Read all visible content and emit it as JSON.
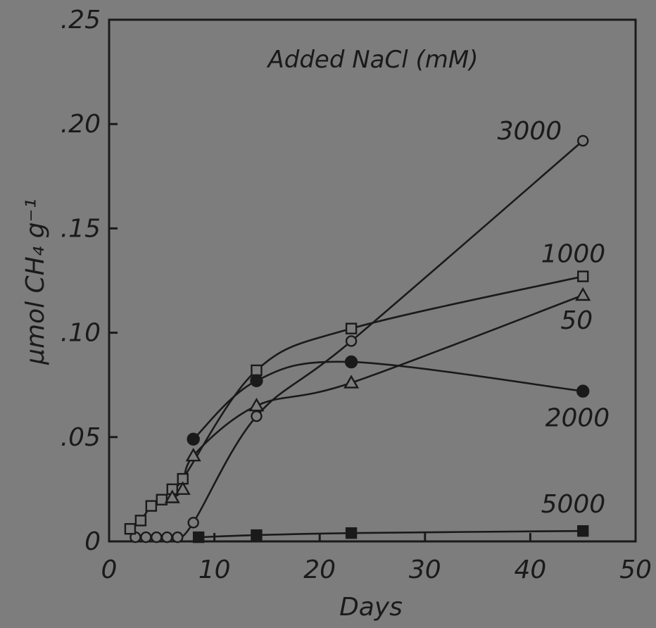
{
  "chart_data": {
    "type": "line",
    "title": "Added NaCl (mM)",
    "xlabel": "Days",
    "ylabel": "μmol CH₄ g⁻¹",
    "xlim": [
      0,
      50
    ],
    "ylim": [
      0,
      0.25
    ],
    "xticks": [
      "0",
      "10",
      "20",
      "30",
      "40",
      "50"
    ],
    "yticks": [
      "0",
      ".05",
      ".10",
      ".15",
      ".20",
      ".25"
    ],
    "grid": false,
    "legend": "none (series labeled directly at line ends)",
    "series": [
      {
        "name": "3000",
        "marker": "open-circle",
        "x": [
          2.5,
          3.5,
          4.5,
          5.5,
          6.5,
          8,
          14,
          23,
          45
        ],
        "y": [
          0.002,
          0.002,
          0.002,
          0.002,
          0.002,
          0.009,
          0.06,
          0.096,
          0.192
        ]
      },
      {
        "name": "1000",
        "marker": "open-square",
        "x": [
          2,
          3,
          4,
          5,
          6,
          7,
          14,
          23,
          45
        ],
        "y": [
          0.006,
          0.01,
          0.017,
          0.02,
          0.025,
          0.03,
          0.082,
          0.102,
          0.127
        ]
      },
      {
        "name": "50",
        "marker": "open-triangle",
        "x": [
          6,
          7,
          8,
          14,
          23,
          45
        ],
        "y": [
          0.021,
          0.025,
          0.041,
          0.065,
          0.076,
          0.118
        ]
      },
      {
        "name": "2000",
        "marker": "filled-circle",
        "x": [
          8,
          14,
          23,
          45
        ],
        "y": [
          0.049,
          0.077,
          0.086,
          0.072
        ]
      },
      {
        "name": "5000",
        "marker": "filled-square",
        "x": [
          8.5,
          14,
          23,
          45
        ],
        "y": [
          0.002,
          0.003,
          0.004,
          0.005
        ]
      }
    ]
  }
}
